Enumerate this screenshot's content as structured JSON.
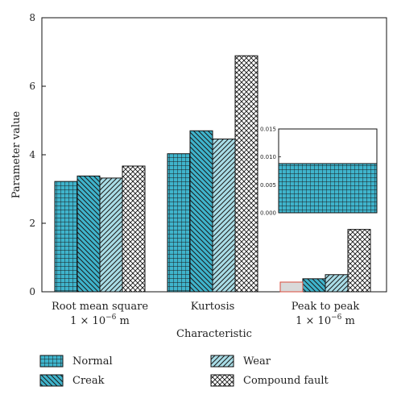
{
  "chart_data": {
    "type": "bar",
    "ylabel": "Parameter value",
    "xlabel": "Characteristic",
    "ylim": [
      0,
      8
    ],
    "yticks": [
      0,
      2,
      4,
      6,
      8
    ],
    "categories": [
      {
        "line1": "Root mean square",
        "line2": "1 × 10",
        "exp": "−6",
        "unit": " m"
      },
      {
        "line1": "Kurtosis",
        "line2": "",
        "exp": "",
        "unit": ""
      },
      {
        "line1": "Peak to peak",
        "line2": "1 × 10",
        "exp": "−6",
        "unit": " m"
      }
    ],
    "series": [
      {
        "name": "Normal",
        "values": [
          3.22,
          4.03,
          0.009
        ],
        "pattern": "grid",
        "fill": "#3fb4cc"
      },
      {
        "name": "Creak",
        "values": [
          3.38,
          4.7,
          0.38
        ],
        "pattern": "backslash",
        "fill": "#3fb4cc"
      },
      {
        "name": "Wear",
        "values": [
          3.32,
          4.46,
          0.5
        ],
        "pattern": "slash",
        "fill": "#a9dde7"
      },
      {
        "name": "Compound fault",
        "values": [
          3.67,
          6.89,
          1.82
        ],
        "pattern": "cross",
        "fill": "#ffffff"
      }
    ],
    "inset": {
      "ylim": [
        0,
        0.015
      ],
      "yticks": [
        "0.000",
        "0.005",
        "0.010",
        "0.015"
      ],
      "value": 0.0088,
      "series": "Normal"
    },
    "legend_placement": "bottom",
    "colors": {
      "accent": "#3fb4cc",
      "light": "#a9dde7",
      "callout": "#d94b3c"
    }
  }
}
